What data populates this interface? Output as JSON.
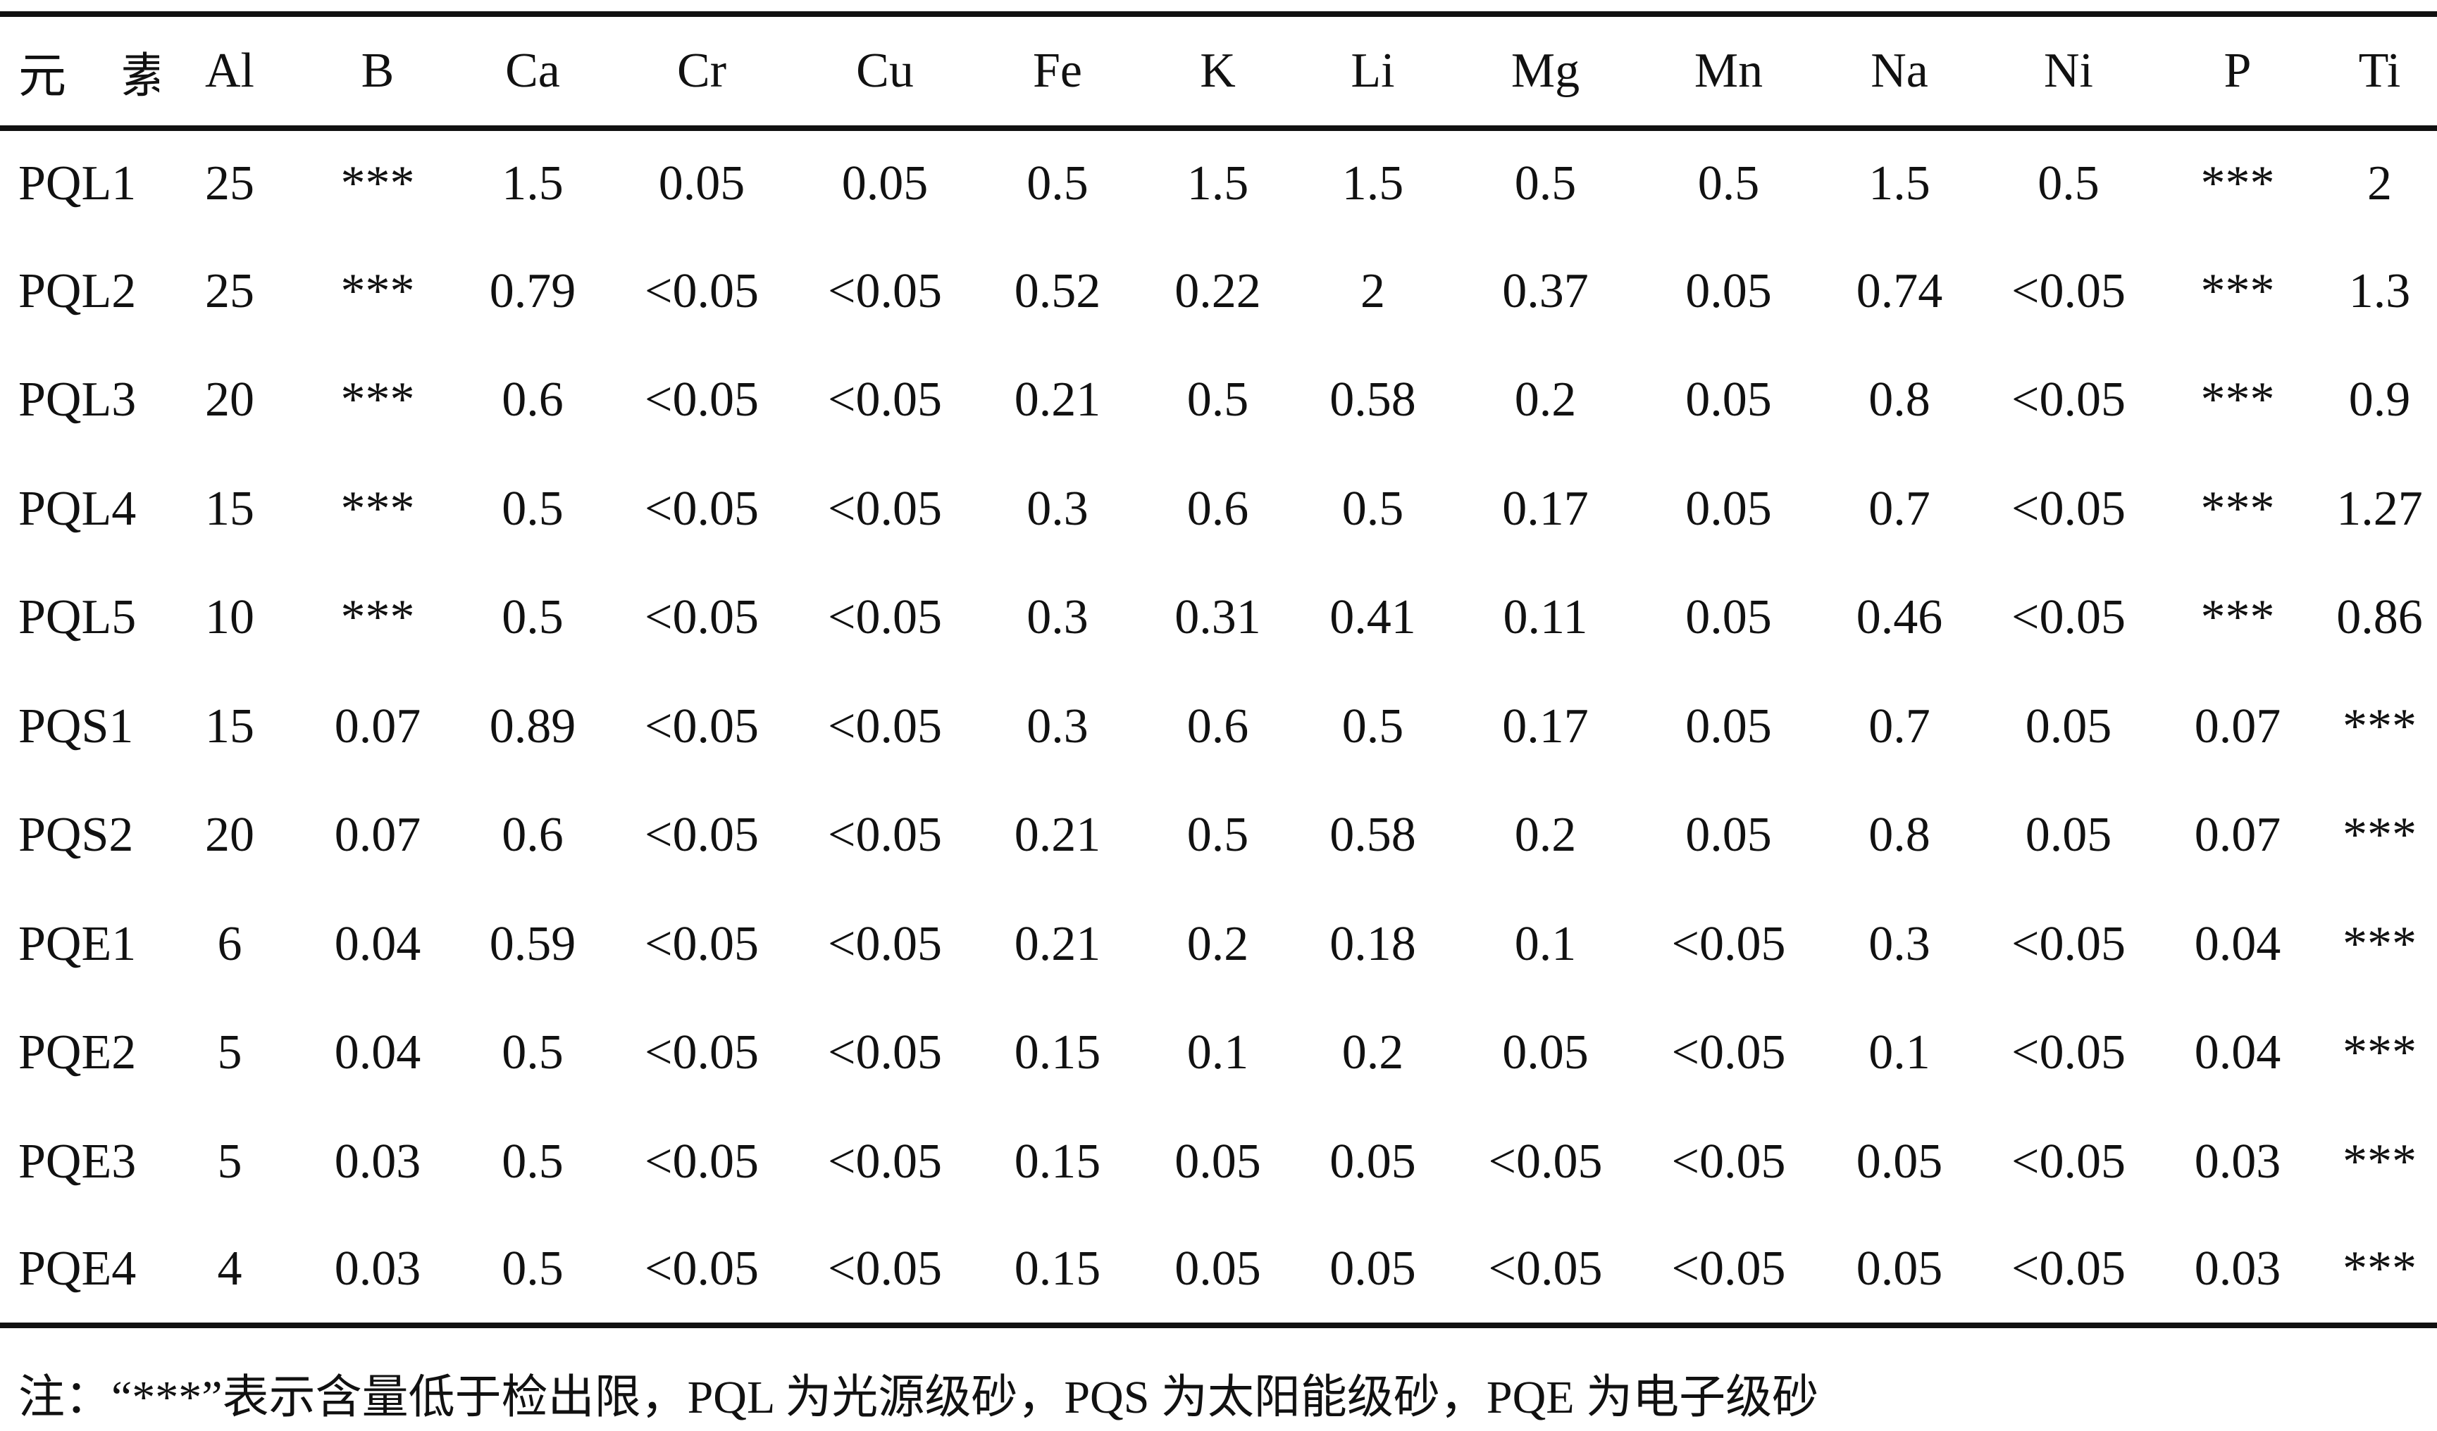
{
  "table": {
    "row_header_label": "元 素",
    "columns": [
      "Al",
      "B",
      "Ca",
      "Cr",
      "Cu",
      "Fe",
      "K",
      "Li",
      "Mg",
      "Mn",
      "Na",
      "Ni",
      "P",
      "Ti"
    ],
    "rows": [
      {
        "label": "PQL1",
        "cells": [
          "25",
          "***",
          "1.5",
          "0.05",
          "0.05",
          "0.5",
          "1.5",
          "1.5",
          "0.5",
          "0.5",
          "1.5",
          "0.5",
          "***",
          "2"
        ]
      },
      {
        "label": "PQL2",
        "cells": [
          "25",
          "***",
          "0.79",
          "<0.05",
          "<0.05",
          "0.52",
          "0.22",
          "2",
          "0.37",
          "0.05",
          "0.74",
          "<0.05",
          "***",
          "1.3"
        ]
      },
      {
        "label": "PQL3",
        "cells": [
          "20",
          "***",
          "0.6",
          "<0.05",
          "<0.05",
          "0.21",
          "0.5",
          "0.58",
          "0.2",
          "0.05",
          "0.8",
          "<0.05",
          "***",
          "0.9"
        ]
      },
      {
        "label": "PQL4",
        "cells": [
          "15",
          "***",
          "0.5",
          "<0.05",
          "<0.05",
          "0.3",
          "0.6",
          "0.5",
          "0.17",
          "0.05",
          "0.7",
          "<0.05",
          "***",
          "1.27"
        ]
      },
      {
        "label": "PQL5",
        "cells": [
          "10",
          "***",
          "0.5",
          "<0.05",
          "<0.05",
          "0.3",
          "0.31",
          "0.41",
          "0.11",
          "0.05",
          "0.46",
          "<0.05",
          "***",
          "0.86"
        ]
      },
      {
        "label": "PQS1",
        "cells": [
          "15",
          "0.07",
          "0.89",
          "<0.05",
          "<0.05",
          "0.3",
          "0.6",
          "0.5",
          "0.17",
          "0.05",
          "0.7",
          "0.05",
          "0.07",
          "***"
        ]
      },
      {
        "label": "PQS2",
        "cells": [
          "20",
          "0.07",
          "0.6",
          "<0.05",
          "<0.05",
          "0.21",
          "0.5",
          "0.58",
          "0.2",
          "0.05",
          "0.8",
          "0.05",
          "0.07",
          "***"
        ]
      },
      {
        "label": "PQE1",
        "cells": [
          "6",
          "0.04",
          "0.59",
          "<0.05",
          "<0.05",
          "0.21",
          "0.2",
          "0.18",
          "0.1",
          "<0.05",
          "0.3",
          "<0.05",
          "0.04",
          "***"
        ]
      },
      {
        "label": "PQE2",
        "cells": [
          "5",
          "0.04",
          "0.5",
          "<0.05",
          "<0.05",
          "0.15",
          "0.1",
          "0.2",
          "0.05",
          "<0.05",
          "0.1",
          "<0.05",
          "0.04",
          "***"
        ]
      },
      {
        "label": "PQE3",
        "cells": [
          "5",
          "0.03",
          "0.5",
          "<0.05",
          "<0.05",
          "0.15",
          "0.05",
          "0.05",
          "<0.05",
          "<0.05",
          "0.05",
          "<0.05",
          "0.03",
          "***"
        ]
      },
      {
        "label": "PQE4",
        "cells": [
          "4",
          "0.03",
          "0.5",
          "<0.05",
          "<0.05",
          "0.15",
          "0.05",
          "0.05",
          "<0.05",
          "<0.05",
          "0.05",
          "<0.05",
          "0.03",
          "***"
        ]
      }
    ]
  },
  "footnote": "注：“***”表示含量低于检出限，PQL 为光源级砂，PQS 为太阳能级砂，PQE 为电子级砂"
}
